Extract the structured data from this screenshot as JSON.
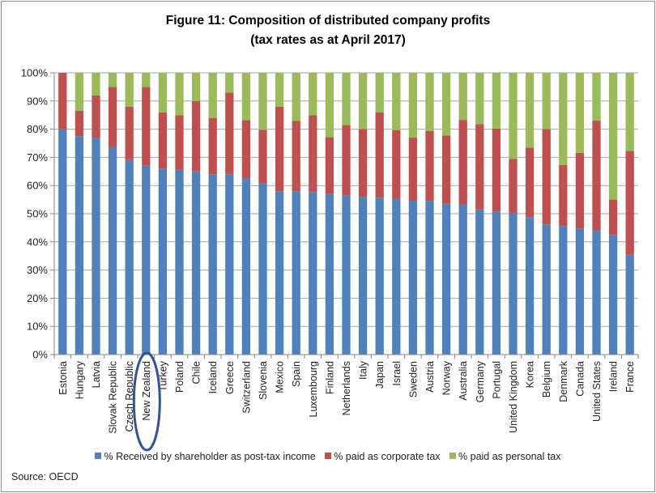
{
  "chart_data": {
    "type": "bar",
    "stacked": true,
    "title": "Figure 11: Composition of distributed company profits",
    "subtitle": "(tax rates as at April 2017)",
    "xlabel": "",
    "ylabel": "",
    "ylim": [
      0,
      100
    ],
    "y_ticks": [
      "0%",
      "10%",
      "20%",
      "30%",
      "40%",
      "50%",
      "60%",
      "70%",
      "80%",
      "90%",
      "100%"
    ],
    "grid": true,
    "legend_position": "bottom",
    "categories": [
      "Estonia",
      "Hungary",
      "Latvia",
      "Slovak Republic",
      "Czech Republic",
      "New Zealand",
      "Turkey",
      "Poland",
      "Chile",
      "Iceland",
      "Greece",
      "Switzerland",
      "Slovenia",
      "Mexico",
      "Spain",
      "Luxembourg",
      "Finland",
      "Netherlands",
      "Italy",
      "Japan",
      "Israel",
      "Sweden",
      "Austria",
      "Norway",
      "Australia",
      "Germany",
      "Portugal",
      "United Kingdom",
      "Korea",
      "Belgium",
      "Denmark",
      "Canada",
      "United States",
      "Ireland",
      "France"
    ],
    "series": [
      {
        "name": "% Received by shareholder as post-tax income",
        "color": "#4f81bd",
        "values": [
          80,
          77.5,
          77,
          73.7,
          69,
          67,
          66,
          65.6,
          65,
          64,
          64,
          62.5,
          60.8,
          58,
          58,
          57.7,
          57,
          56.5,
          56,
          55.7,
          55.3,
          54.6,
          54.5,
          53.5,
          53.3,
          51.5,
          50.8,
          50.3,
          48.8,
          46.2,
          45.6,
          44.8,
          44,
          42.5,
          35.4
        ]
      },
      {
        "name": "% paid as corporate tax",
        "color": "#c0504d",
        "values": [
          20,
          9,
          15,
          21.3,
          19,
          28,
          20,
          19.4,
          25,
          20,
          29,
          20.7,
          19,
          30,
          25,
          27.3,
          20.2,
          25,
          24,
          30.3,
          24.3,
          22.4,
          24.9,
          24.3,
          30,
          30.3,
          29.4,
          19.1,
          24.7,
          33.8,
          21.7,
          26.8,
          39.1,
          12.5,
          36.9
        ]
      },
      {
        "name": "% paid as personal tax",
        "color": "#9bbb59",
        "values": [
          0,
          13.5,
          8,
          5,
          12,
          5,
          14,
          15,
          10,
          16,
          7,
          16.8,
          20.2,
          12,
          17,
          15,
          22.8,
          18.5,
          20,
          14,
          20.4,
          23,
          20.6,
          22.2,
          16.7,
          18.2,
          19.8,
          30.6,
          26.5,
          20,
          32.7,
          28.4,
          16.9,
          45,
          27.7
        ]
      }
    ],
    "annotations": [
      {
        "type": "ellipse-highlight",
        "category": "New Zealand",
        "color": "#2f5597"
      }
    ],
    "source": "Source: OECD"
  }
}
